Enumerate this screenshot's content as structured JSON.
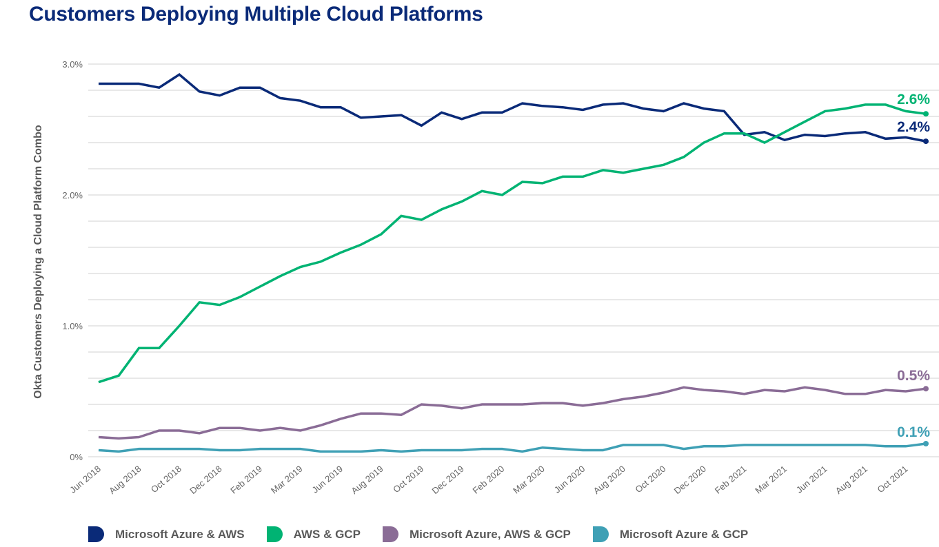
{
  "chart_data": {
    "type": "line",
    "title": "Customers Deploying Multiple Cloud Platforms",
    "xlabel": "",
    "ylabel": "Okta Customers Deploying a Cloud Platform Combo",
    "ylim": [
      0,
      3.0
    ],
    "yticks": [
      0,
      0.2,
      0.4,
      0.6,
      0.8,
      1.0,
      1.2,
      1.4,
      1.6,
      1.8,
      2.0,
      2.2,
      2.4,
      2.6,
      2.8,
      3.0
    ],
    "ytick_labels": [
      {
        "value": 3.0,
        "label": "3.0%"
      },
      {
        "value": 2.0,
        "label": "2.0%"
      },
      {
        "value": 1.0,
        "label": "1.0%"
      },
      {
        "value": 0,
        "label": "0%"
      }
    ],
    "grid": true,
    "n_points": 42,
    "xtick_labels": [
      "Jun 2018",
      "Aug 2018",
      "Oct 2018",
      "Dec 2018",
      "Feb 2019",
      "Mar 2019",
      "Jun 2019",
      "Aug 2019",
      "Oct 2019",
      "Dec 2019",
      "Feb 2020",
      "Mar 2020",
      "Jun 2020",
      "Aug 2020",
      "Oct 2020",
      "Dec 2020",
      "Feb 2021",
      "Mar 2021",
      "Jun 2021",
      "Aug 2021",
      "Oct 2021"
    ],
    "legend_position": "bottom",
    "series": [
      {
        "name": "Microsoft Azure & AWS",
        "color": "#0a2a78",
        "end_label": "2.4%",
        "values": [
          2.85,
          2.85,
          2.85,
          2.82,
          2.92,
          2.79,
          2.76,
          2.82,
          2.82,
          2.74,
          2.72,
          2.67,
          2.67,
          2.59,
          2.6,
          2.61,
          2.53,
          2.63,
          2.58,
          2.63,
          2.63,
          2.7,
          2.68,
          2.67,
          2.65,
          2.69,
          2.7,
          2.66,
          2.64,
          2.7,
          2.66,
          2.64,
          2.46,
          2.48,
          2.42,
          2.46,
          2.45,
          2.47,
          2.48,
          2.43,
          2.44,
          2.41
        ]
      },
      {
        "name": "AWS & GCP",
        "color": "#00b373",
        "end_label": "2.6%",
        "values": [
          0.57,
          0.62,
          0.83,
          0.83,
          1.0,
          1.18,
          1.16,
          1.22,
          1.3,
          1.38,
          1.45,
          1.49,
          1.56,
          1.62,
          1.7,
          1.84,
          1.81,
          1.89,
          1.95,
          2.03,
          2.0,
          2.1,
          2.09,
          2.14,
          2.14,
          2.19,
          2.17,
          2.2,
          2.23,
          2.29,
          2.4,
          2.47,
          2.47,
          2.4,
          2.48,
          2.56,
          2.64,
          2.66,
          2.69,
          2.69,
          2.64,
          2.62
        ]
      },
      {
        "name": "Microsoft Azure, AWS & GCP",
        "color": "#8a6c96",
        "end_label": "0.5%",
        "values": [
          0.15,
          0.14,
          0.15,
          0.2,
          0.2,
          0.18,
          0.22,
          0.22,
          0.2,
          0.22,
          0.2,
          0.24,
          0.29,
          0.33,
          0.33,
          0.32,
          0.4,
          0.39,
          0.37,
          0.4,
          0.4,
          0.4,
          0.41,
          0.41,
          0.39,
          0.41,
          0.44,
          0.46,
          0.49,
          0.53,
          0.51,
          0.5,
          0.48,
          0.51,
          0.5,
          0.53,
          0.51,
          0.48,
          0.48,
          0.51,
          0.5,
          0.52
        ]
      },
      {
        "name": "Microsoft Azure & GCP",
        "color": "#3fa0b5",
        "end_label": "0.1%",
        "values": [
          0.05,
          0.04,
          0.06,
          0.06,
          0.06,
          0.06,
          0.05,
          0.05,
          0.06,
          0.06,
          0.06,
          0.04,
          0.04,
          0.04,
          0.05,
          0.04,
          0.05,
          0.05,
          0.05,
          0.06,
          0.06,
          0.04,
          0.07,
          0.06,
          0.05,
          0.05,
          0.09,
          0.09,
          0.09,
          0.06,
          0.08,
          0.08,
          0.09,
          0.09,
          0.09,
          0.09,
          0.09,
          0.09,
          0.09,
          0.08,
          0.08,
          0.1
        ]
      }
    ]
  }
}
